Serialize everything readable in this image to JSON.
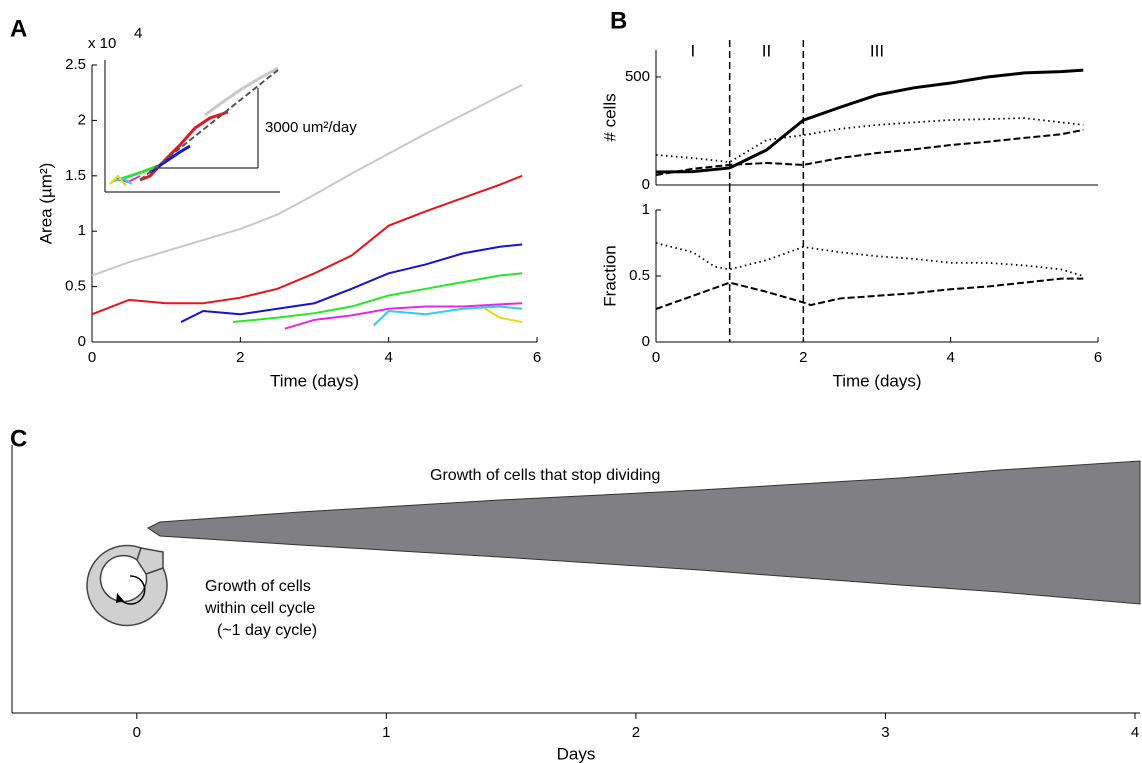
{
  "chart_data": [
    {
      "type": "line",
      "panel": "A",
      "ylabel": "Area (µm²)",
      "xlabel": "Time (days)",
      "multiplier": "x 10",
      "multiplier_exponent": "4",
      "annotation": "3000 um²/day",
      "xlim": [
        0,
        6
      ],
      "xticks": [
        0,
        2,
        4,
        6
      ],
      "ylim": [
        0,
        2.5
      ],
      "yticks": [
        0,
        0.5,
        1,
        1.5,
        2,
        2.5
      ],
      "series": [
        {
          "color": "#c8c8c8",
          "style": "solid",
          "x": [
            0,
            0.5,
            1,
            1.5,
            2,
            2.5,
            3,
            3.5,
            4,
            4.5,
            5,
            5.5,
            5.8
          ],
          "values": [
            0.6,
            0.72,
            0.82,
            0.92,
            1.02,
            1.15,
            1.33,
            1.52,
            1.7,
            1.88,
            2.05,
            2.22,
            2.32
          ]
        },
        {
          "color": "#e8141c",
          "style": "solid",
          "x": [
            0,
            0.5,
            1,
            1.5,
            2,
            2.5,
            3,
            3.5,
            4,
            4.5,
            5,
            5.5,
            5.8
          ],
          "values": [
            0.25,
            0.38,
            0.35,
            0.35,
            0.4,
            0.48,
            0.62,
            0.78,
            1.05,
            1.18,
            1.3,
            1.42,
            1.5
          ]
        },
        {
          "color": "#1414d2",
          "style": "solid",
          "x": [
            1.2,
            1.5,
            2,
            2.5,
            3,
            3.5,
            4,
            4.5,
            5,
            5.5,
            5.8
          ],
          "values": [
            0.18,
            0.28,
            0.25,
            0.3,
            0.35,
            0.48,
            0.62,
            0.7,
            0.8,
            0.86,
            0.88
          ]
        },
        {
          "color": "#28e628",
          "style": "solid",
          "x": [
            1.9,
            2.5,
            3,
            3.5,
            4,
            4.5,
            5,
            5.5,
            5.8
          ],
          "values": [
            0.18,
            0.22,
            0.26,
            0.32,
            0.42,
            0.48,
            0.54,
            0.6,
            0.62
          ]
        },
        {
          "color": "#e628e6",
          "style": "solid",
          "x": [
            2.6,
            3,
            3.5,
            4,
            4.5,
            5,
            5.5,
            5.8
          ],
          "values": [
            0.12,
            0.2,
            0.24,
            0.3,
            0.32,
            0.32,
            0.34,
            0.35
          ]
        },
        {
          "color": "#28d2e6",
          "style": "solid",
          "x": [
            3.8,
            4,
            4.5,
            5,
            5.5,
            5.8
          ],
          "values": [
            0.15,
            0.28,
            0.25,
            0.3,
            0.32,
            0.3
          ]
        },
        {
          "color": "#e6dc14",
          "style": "solid",
          "x": [
            5.3,
            5.5,
            5.8
          ],
          "values": [
            0.3,
            0.22,
            0.18
          ]
        }
      ]
    },
    {
      "type": "line",
      "panel": "B",
      "ylabel": "# cells",
      "regions": [
        "I",
        "II",
        "III"
      ],
      "dividers": [
        1,
        2
      ],
      "xlim": [
        0,
        6
      ],
      "ylim": [
        0,
        625
      ],
      "yticks": [
        0,
        500
      ],
      "series": [
        {
          "color": "#000000",
          "style": "solid",
          "x": [
            0,
            0.5,
            1,
            1.5,
            2,
            2.5,
            3,
            3.5,
            4,
            4.5,
            5,
            5.5,
            5.8
          ],
          "values": [
            60,
            62,
            79,
            162,
            300,
            360,
            417,
            450,
            472,
            500,
            519,
            525,
            532
          ]
        },
        {
          "color": "#000000",
          "style": "dotted",
          "x": [
            0,
            0.5,
            1,
            1.5,
            2,
            2.5,
            3,
            3.5,
            4,
            4.5,
            5,
            5.5,
            5.8
          ],
          "values": [
            139,
            125,
            106,
            208,
            231,
            260,
            278,
            290,
            301,
            305,
            310,
            290,
            278
          ]
        },
        {
          "color": "#000000",
          "style": "dashed",
          "x": [
            0,
            0.5,
            1,
            1.5,
            2,
            2.5,
            3,
            3.5,
            4,
            4.5,
            5,
            5.5,
            5.8
          ],
          "values": [
            46,
            75,
            93,
            102,
            93,
            125,
            148,
            165,
            185,
            200,
            218,
            235,
            255
          ]
        }
      ]
    },
    {
      "type": "line",
      "ylabel": "Fraction",
      "xlabel": "Time (days)",
      "dividers": [
        1,
        2
      ],
      "xlim": [
        0,
        6
      ],
      "xticks": [
        0,
        2,
        4,
        6
      ],
      "ylim": [
        0,
        1
      ],
      "yticks": [
        0,
        0.5,
        1
      ],
      "series": [
        {
          "color": "#000000",
          "style": "dotted",
          "x": [
            0,
            0.5,
            0.8,
            1,
            1.5,
            2,
            2.5,
            3,
            3.5,
            4,
            4.5,
            5,
            5.5,
            5.8
          ],
          "values": [
            0.75,
            0.68,
            0.57,
            0.55,
            0.62,
            0.72,
            0.68,
            0.65,
            0.63,
            0.6,
            0.6,
            0.58,
            0.55,
            0.5
          ]
        },
        {
          "color": "#000000",
          "style": "dashed",
          "x": [
            0,
            0.5,
            1,
            1.5,
            2,
            2.1,
            2.5,
            3,
            3.5,
            4,
            4.5,
            5,
            5.5,
            5.8
          ],
          "values": [
            0.25,
            0.35,
            0.45,
            0.38,
            0.3,
            0.28,
            0.33,
            0.35,
            0.37,
            0.4,
            0.42,
            0.45,
            0.48,
            0.48
          ]
        }
      ]
    },
    {
      "type": "diagram",
      "panel": "C",
      "xlabel": "Days",
      "xlim": [
        -0.5,
        4
      ],
      "xticks": [
        0,
        1,
        2,
        3,
        4
      ],
      "annotations": [
        "Growth of cells that stop dividing",
        "Growth of cells",
        "within cell cycle",
        "(~1 day cycle)"
      ]
    }
  ]
}
